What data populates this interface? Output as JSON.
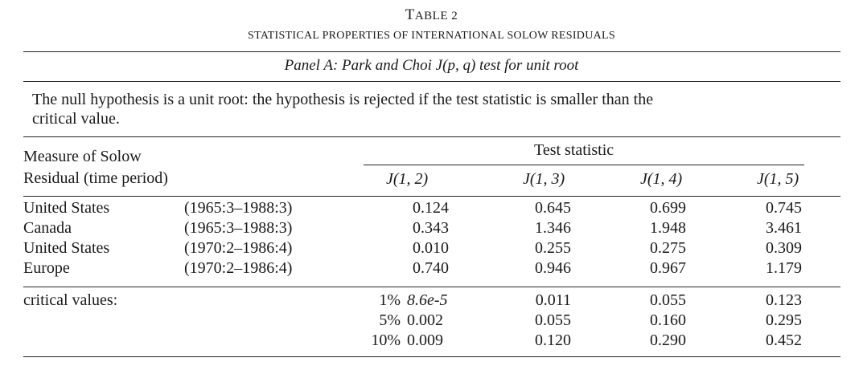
{
  "table_label_prefix": "T",
  "table_label_rest": "ABLE 2",
  "title": "STATISTICAL PROPERTIES OF INTERNATIONAL SOLOW RESIDUALS",
  "panel_title": "Panel A: Park and Choi J(p, q) test for unit root",
  "note_line1": "The null hypothesis is a unit root: the hypothesis is rejected if the test statistic is smaller than the",
  "note_line2": "critical value.",
  "header": {
    "measure_line1": "Measure of Solow",
    "measure_line2": "Residual (time period)",
    "test_statistic": "Test statistic",
    "columns": [
      "J(1, 2)",
      "J(1, 3)",
      "J(1, 4)",
      "J(1, 5)"
    ]
  },
  "rows": [
    {
      "country": "United States",
      "period": "(1965:3–1988:3)",
      "values": [
        "0.124",
        "0.645",
        "0.699",
        "0.745"
      ]
    },
    {
      "country": "Canada",
      "period": "(1965:3–1988:3)",
      "values": [
        "0.343",
        "1.346",
        "1.948",
        "3.461"
      ]
    },
    {
      "country": "United States",
      "period": "(1970:2–1986:4)",
      "values": [
        "0.010",
        "0.255",
        "0.275",
        "0.309"
      ]
    },
    {
      "country": "Europe",
      "period": "(1970:2–1986:4)",
      "values": [
        "0.740",
        "0.946",
        "0.967",
        "1.179"
      ]
    }
  ],
  "critical": {
    "label": "critical values:",
    "rows": [
      {
        "level": "1%",
        "values": [
          "8.6e-5",
          "0.011",
          "0.055",
          "0.123"
        ]
      },
      {
        "level": "5%",
        "values": [
          "0.002",
          "0.055",
          "0.160",
          "0.295"
        ]
      },
      {
        "level": "10%",
        "values": [
          "0.009",
          "0.120",
          "0.290",
          "0.452"
        ]
      }
    ]
  }
}
